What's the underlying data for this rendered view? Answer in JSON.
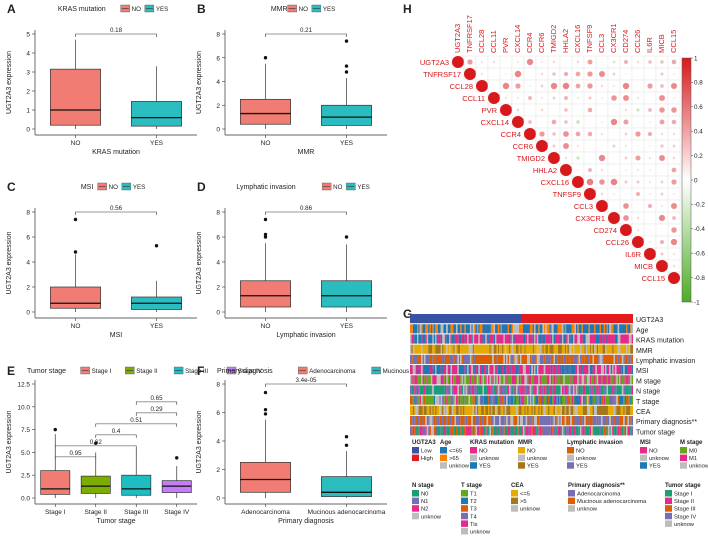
{
  "panels": [
    {
      "letter": "A",
      "legend_title": "KRAS mutation",
      "legend_items": [
        "NO",
        "YES"
      ],
      "colors": [
        "#F07C73",
        "#2ABCBF"
      ],
      "ylabel": "UGT2A3  expression",
      "xlabel": "KRAS mutation",
      "ymin": 0,
      "ymax": 5,
      "yticks": [
        "0",
        "1",
        "2",
        "3",
        "4",
        "5"
      ],
      "categories": [
        "NO",
        "YES"
      ],
      "boxes": [
        {
          "q1": 0.2,
          "median": 1.0,
          "q3": 3.15,
          "lo": 0,
          "hi": 4.7,
          "outliers": []
        },
        {
          "q1": 0.15,
          "median": 0.6,
          "q3": 1.45,
          "lo": 0,
          "hi": 3.3,
          "outliers": []
        }
      ],
      "brackets": [
        {
          "a": 0,
          "b": 1,
          "label": "0.18"
        }
      ]
    },
    {
      "letter": "B",
      "legend_title": "MMR",
      "legend_items": [
        "NO",
        "YES"
      ],
      "colors": [
        "#F07C73",
        "#2ABCBF"
      ],
      "ylabel": "UGT2A3  expression",
      "xlabel": "MMR",
      "ymin": 0,
      "ymax": 8,
      "yticks": [
        "0",
        "2",
        "4",
        "6",
        "8"
      ],
      "categories": [
        "NO",
        "YES"
      ],
      "boxes": [
        {
          "q1": 0.4,
          "median": 1.3,
          "q3": 2.5,
          "lo": 0,
          "hi": 5.5,
          "outliers": [
            6.0
          ]
        },
        {
          "q1": 0.3,
          "median": 1.0,
          "q3": 2.0,
          "lo": 0,
          "hi": 4.3,
          "outliers": [
            4.8,
            5.3,
            7.4
          ]
        }
      ],
      "brackets": [
        {
          "a": 0,
          "b": 1,
          "label": "0.21"
        }
      ]
    },
    {
      "letter": "C",
      "legend_title": "MSI",
      "legend_items": [
        "NO",
        "YES"
      ],
      "colors": [
        "#F07C73",
        "#2ABCBF"
      ],
      "ylabel": "UGT2A3  expression",
      "xlabel": "MSI",
      "ymin": 0,
      "ymax": 8,
      "yticks": [
        "0",
        "2",
        "4",
        "6",
        "8"
      ],
      "categories": [
        "NO",
        "YES"
      ],
      "boxes": [
        {
          "q1": 0.3,
          "median": 0.7,
          "q3": 2.0,
          "lo": 0,
          "hi": 4.6,
          "outliers": [
            4.8,
            7.4
          ]
        },
        {
          "q1": 0.2,
          "median": 0.7,
          "q3": 1.2,
          "lo": 0,
          "hi": 2.5,
          "outliers": [
            5.3
          ]
        }
      ],
      "brackets": [
        {
          "a": 0,
          "b": 1,
          "label": "0.56"
        }
      ]
    },
    {
      "letter": "D",
      "legend_title": "Lymphatic invasion",
      "legend_items": [
        "NO",
        "YES"
      ],
      "colors": [
        "#F07C73",
        "#2ABCBF"
      ],
      "ylabel": "UGT2A3  expression",
      "xlabel": "Lymphatic invasion",
      "ymin": 0,
      "ymax": 8,
      "yticks": [
        "0",
        "2",
        "4",
        "6",
        "8"
      ],
      "categories": [
        "NO",
        "YES"
      ],
      "boxes": [
        {
          "q1": 0.4,
          "median": 1.3,
          "q3": 2.5,
          "lo": 0,
          "hi": 5.5,
          "outliers": [
            6.0,
            6.2,
            7.4
          ]
        },
        {
          "q1": 0.4,
          "median": 1.3,
          "q3": 2.5,
          "lo": 0,
          "hi": 5.4,
          "outliers": [
            6.0
          ]
        }
      ],
      "brackets": [
        {
          "a": 0,
          "b": 1,
          "label": "0.86"
        }
      ]
    },
    {
      "letter": "E",
      "legend_title": "Tumor stage",
      "legend_items": [
        "Stage I",
        "Stage II",
        "Stage III",
        "Stage IV"
      ],
      "colors": [
        "#F07C73",
        "#7CAE00",
        "#1DBDC2",
        "#C57CF7"
      ],
      "ylabel": "UGT2A3  expression",
      "xlabel": "Tumor stage",
      "ymin": 0,
      "ymax": 12.5,
      "yticks": [
        "0.0",
        "2.5",
        "5.0",
        "7.5",
        "10.0",
        "12.5"
      ],
      "categories": [
        "Stage I",
        "Stage II",
        "Stage III",
        "Stage IV"
      ],
      "boxes": [
        {
          "q1": 0.4,
          "median": 1.0,
          "q3": 3.0,
          "lo": 0,
          "hi": 7.0,
          "outliers": [
            7.5
          ]
        },
        {
          "q1": 0.5,
          "median": 1.3,
          "q3": 2.4,
          "lo": 0,
          "hi": 5.0,
          "outliers": [
            6.0
          ]
        },
        {
          "q1": 0.3,
          "median": 1.0,
          "q3": 2.5,
          "lo": 0,
          "hi": 5.5,
          "outliers": []
        },
        {
          "q1": 0.6,
          "median": 1.3,
          "q3": 1.9,
          "lo": 0,
          "hi": 3.5,
          "outliers": [
            4.4
          ]
        }
      ],
      "brackets": [
        {
          "a": 0,
          "b": 1,
          "label": "0.95"
        },
        {
          "a": 0,
          "b": 2,
          "label": "0.62"
        },
        {
          "a": 1,
          "b": 2,
          "label": "0.4"
        },
        {
          "a": 1,
          "b": 3,
          "label": "0.51"
        },
        {
          "a": 2,
          "b": 3,
          "label": "0.29"
        },
        {
          "a": 2,
          "b": 3,
          "label": "0.65"
        }
      ]
    },
    {
      "letter": "F",
      "legend_title": "Primary diagnosis",
      "legend_items": [
        "Adenocarcinoma",
        "Mucinous adenocarcinoma"
      ],
      "colors": [
        "#F07C73",
        "#2ABCBF"
      ],
      "ylabel": "UGT2A3  expression",
      "xlabel": "Primary diagnosis",
      "ymin": 0,
      "ymax": 8,
      "yticks": [
        "0",
        "2",
        "4",
        "6",
        "8"
      ],
      "categories": [
        "Adenocarcinoma",
        "Mucinous adenocarcinoma"
      ],
      "boxes": [
        {
          "q1": 0.4,
          "median": 1.3,
          "q3": 2.5,
          "lo": 0,
          "hi": 5.5,
          "outliers": [
            5.9,
            6.2,
            7.4
          ]
        },
        {
          "q1": 0.1,
          "median": 0.4,
          "q3": 1.5,
          "lo": 0,
          "hi": 3.3,
          "outliers": [
            3.7,
            4.3
          ]
        }
      ],
      "brackets": [
        {
          "a": 0,
          "b": 1,
          "label": "3.4e-05"
        }
      ]
    }
  ],
  "heatmap": {
    "letter": "G",
    "row_labels": [
      "UGT2A3",
      "Age",
      "KRAS mutation",
      "MMR",
      "Lymphatic invasion",
      "MSI",
      "M stage",
      "N stage",
      "T stage",
      "CEA",
      "Primary diagnosis**",
      "Tumor stage"
    ],
    "legend_groups": [
      {
        "title": "UGT2A3",
        "items": [
          {
            "label": "Low",
            "color": "#3953A4"
          },
          {
            "label": "High",
            "color": "#E41A1C"
          }
        ]
      },
      {
        "title": "Age",
        "items": [
          {
            "label": "<=65",
            "color": "#1F78B4"
          },
          {
            "label": ">65",
            "color": "#FF7F00"
          },
          {
            "label": "unknow",
            "color": "#BDBDBD"
          }
        ]
      },
      {
        "title": "KRAS mutation",
        "items": [
          {
            "label": "NO",
            "color": "#E7298A"
          },
          {
            "label": "unknow",
            "color": "#BDBDBD"
          },
          {
            "label": "YES",
            "color": "#1F78B4"
          }
        ]
      },
      {
        "title": "MMR",
        "items": [
          {
            "label": "NO",
            "color": "#E6AB02"
          },
          {
            "label": "unknow",
            "color": "#BDBDBD"
          },
          {
            "label": "YES",
            "color": "#A6761D"
          }
        ]
      },
      {
        "title": "Lymphatic invasion",
        "items": [
          {
            "label": "NO",
            "color": "#D95F02"
          },
          {
            "label": "unknow",
            "color": "#BDBDBD"
          },
          {
            "label": "YES",
            "color": "#7570B3"
          }
        ]
      },
      {
        "title": "MSI",
        "items": [
          {
            "label": "NO",
            "color": "#E7298A"
          },
          {
            "label": "unknow",
            "color": "#BDBDBD"
          },
          {
            "label": "YES",
            "color": "#1F78B4"
          }
        ]
      },
      {
        "title": "M stage",
        "items": [
          {
            "label": "M0",
            "color": "#66A61E"
          },
          {
            "label": "M1",
            "color": "#E7298A"
          },
          {
            "label": "unknow",
            "color": "#BDBDBD"
          }
        ]
      },
      {
        "title": "N stage",
        "items": [
          {
            "label": "N0",
            "color": "#1B9E77"
          },
          {
            "label": "N1",
            "color": "#7570B3"
          },
          {
            "label": "N2",
            "color": "#E7298A"
          },
          {
            "label": "unknow",
            "color": "#BDBDBD"
          }
        ]
      },
      {
        "title": "T stage",
        "items": [
          {
            "label": "T1",
            "color": "#66A61E"
          },
          {
            "label": "T2",
            "color": "#1F78B4"
          },
          {
            "label": "T3",
            "color": "#D95F02"
          },
          {
            "label": "T4",
            "color": "#7570B3"
          },
          {
            "label": "Tis",
            "color": "#E7298A"
          },
          {
            "label": "unknow",
            "color": "#BDBDBD"
          }
        ]
      },
      {
        "title": "CEA",
        "items": [
          {
            "label": "<=5",
            "color": "#E6AB02"
          },
          {
            "label": ">5",
            "color": "#A6761D"
          },
          {
            "label": "unknow",
            "color": "#BDBDBD"
          }
        ]
      },
      {
        "title": "Primary diagnosis**",
        "items": [
          {
            "label": "Adenocarcinoma",
            "color": "#7570B3"
          },
          {
            "label": "Mucinous adenocarcinoma",
            "color": "#D95F02"
          },
          {
            "label": "unknow",
            "color": "#BDBDBD"
          }
        ]
      },
      {
        "title": "Tumor stage",
        "items": [
          {
            "label": "Stage I",
            "color": "#1B9E77"
          },
          {
            "label": "Stage II",
            "color": "#E7298A"
          },
          {
            "label": "Stage III",
            "color": "#D95F02"
          },
          {
            "label": "Stage IV",
            "color": "#7570B3"
          },
          {
            "label": "unknow",
            "color": "#BDBDBD"
          }
        ]
      }
    ]
  },
  "correlation": {
    "letter": "H",
    "genes": [
      "UGT2A3",
      "TNFRSF17",
      "CCL28",
      "CCL11",
      "PVR",
      "CXCL14",
      "CCR4",
      "CCR6",
      "TMIGD2",
      "HHLA2",
      "CXCL16",
      "TNFSF9",
      "CCL3",
      "CX3CR1",
      "CD274",
      "CCL26",
      "IL6R",
      "MICB",
      "CCL15"
    ],
    "colorbar_ticks": [
      "1",
      "0.8",
      "0.6",
      "0.4",
      "0.2",
      "0",
      "-0.2",
      "-0.4",
      "-0.6",
      "-0.8",
      "-1"
    ],
    "colors": {
      "pos": "#D7191C",
      "neg": "#4DAC26",
      "mid": "#FFFFFF"
    }
  }
}
